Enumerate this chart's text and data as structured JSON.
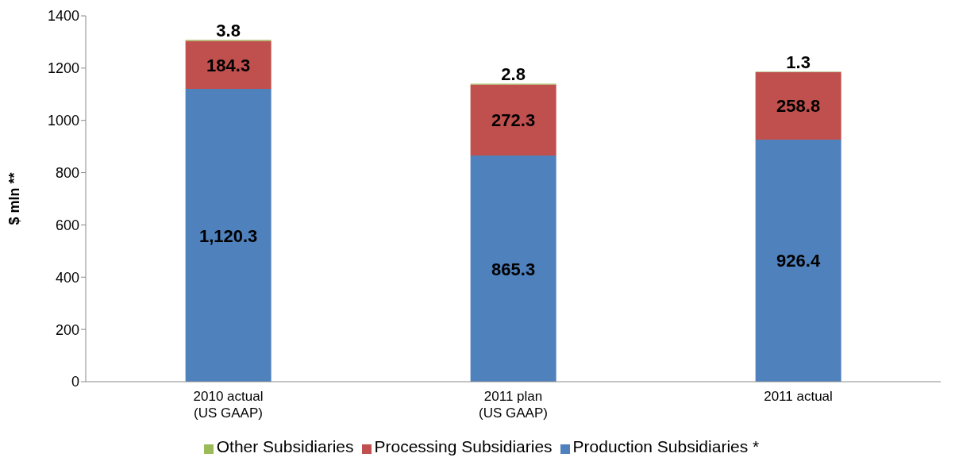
{
  "chart_data": {
    "type": "bar",
    "stacked": true,
    "ylabel": "$ mln **",
    "categories": [
      "2010 actual\n(US GAAP)",
      "2011 plan\n(US GAAP)",
      "2011 actual"
    ],
    "series": [
      {
        "name": "Production Subsidiaries *",
        "color": "#4f81bd",
        "values": [
          1120.3,
          865.3,
          926.4
        ],
        "value_labels": [
          "1,120.3",
          "865.3",
          "926.4"
        ]
      },
      {
        "name": "Processing Subsidiaries",
        "color": "#c0504d",
        "values": [
          184.3,
          272.3,
          258.8
        ],
        "value_labels": [
          "184.3",
          "272.3",
          "258.8"
        ]
      },
      {
        "name": "Other Subsidiaries",
        "color": "#9bbb59",
        "values": [
          3.8,
          2.8,
          1.3
        ],
        "value_labels": [
          "3.8",
          "2.8",
          "1.3"
        ]
      }
    ],
    "ylim": [
      0,
      1400
    ],
    "yticks": [
      0,
      200,
      400,
      600,
      800,
      1000,
      1200,
      1400
    ],
    "grid": false,
    "legend": "bottom"
  }
}
